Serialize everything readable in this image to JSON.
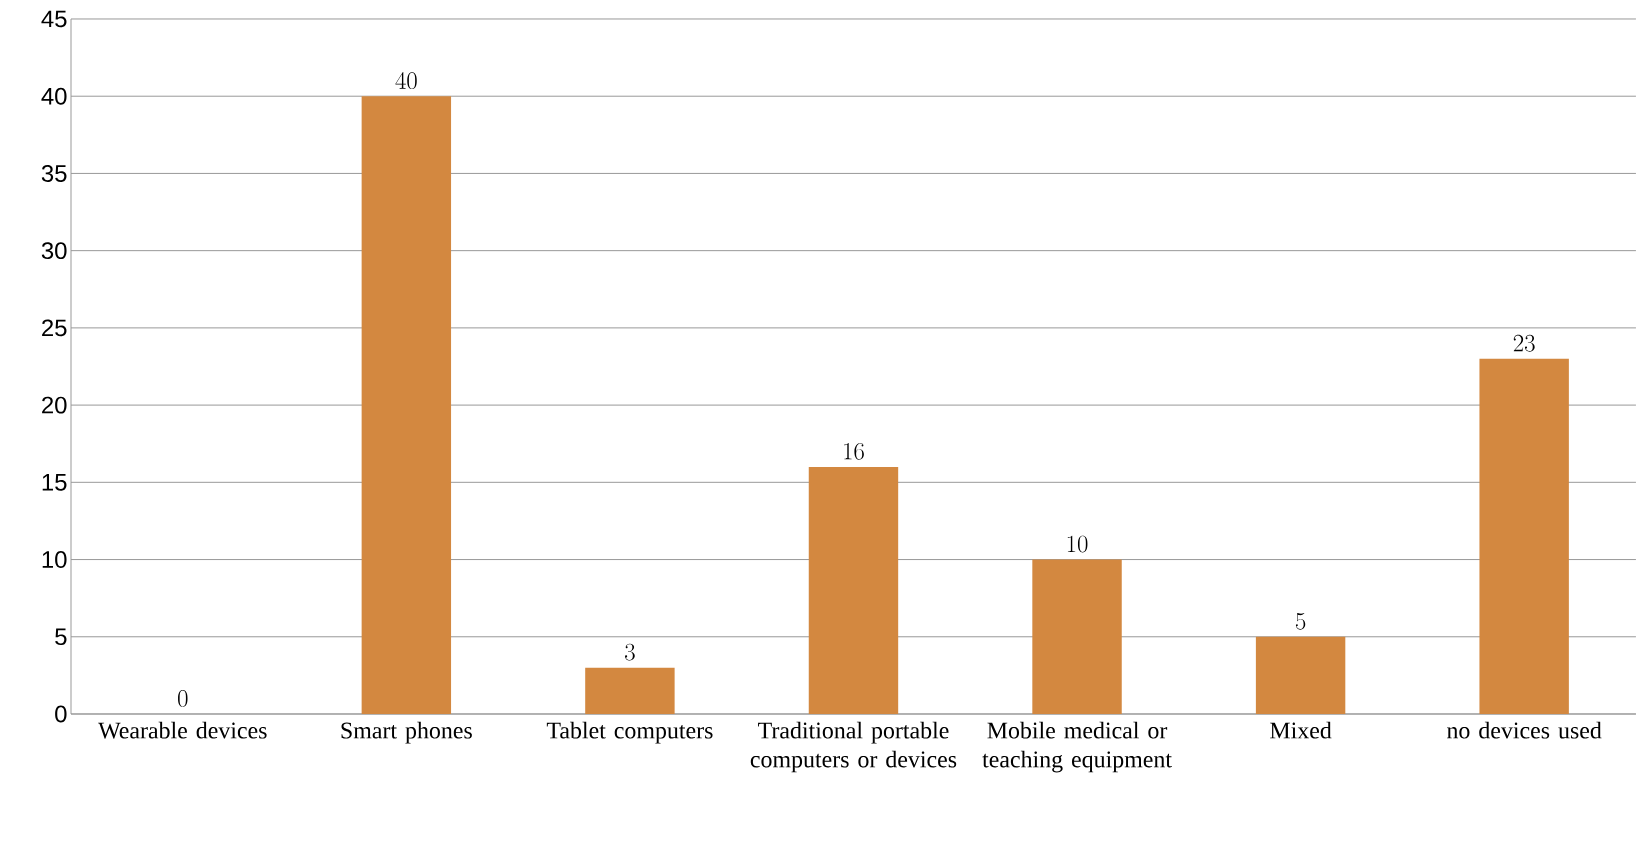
{
  "chart_data": {
    "type": "bar",
    "categories": [
      "Wearable devices",
      "Smart phones",
      "Tablet computers",
      "Traditional portable computers or devices",
      "Mobile medical or teaching equipment",
      "Mixed",
      "no devices used"
    ],
    "values": [
      0,
      40,
      3,
      16,
      10,
      5,
      23
    ],
    "color": "#d38840",
    "ylim": [
      0,
      45
    ],
    "yticks": [
      0,
      5,
      10,
      15,
      20,
      25,
      30,
      35,
      40,
      45
    ],
    "grid": "y",
    "data_labels": true
  }
}
